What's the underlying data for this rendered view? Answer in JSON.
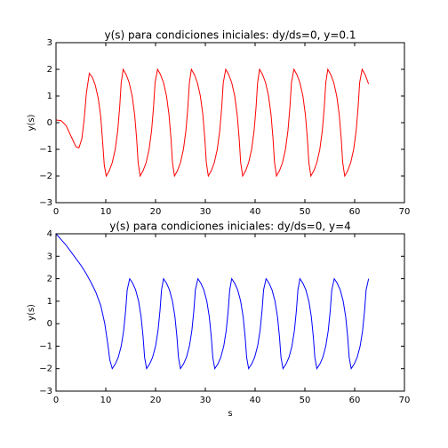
{
  "chart_data": [
    {
      "type": "line",
      "title": "y(s) para condiciones iniciales: dy/ds=0, y=0.1",
      "ylabel": "y(s)",
      "xlim": [
        0,
        70
      ],
      "xticks": [
        0,
        10,
        20,
        30,
        40,
        50,
        60,
        70
      ],
      "ylim": [
        -3,
        3
      ],
      "yticks": [
        {
          "value": -3,
          "label": "−3"
        },
        {
          "value": -2,
          "label": "−2"
        },
        {
          "value": -1,
          "label": "−1"
        },
        0,
        1,
        2,
        3
      ],
      "x": [
        0,
        1,
        2,
        3,
        4,
        4.6,
        5.2,
        5.7,
        6.1,
        6.7,
        7.3,
        7.9,
        8.5,
        9.0,
        9.4,
        9.7,
        10.1,
        10.7,
        11.3,
        11.9,
        12.4,
        12.8,
        13.1,
        13.5,
        14.1,
        14.7,
        15.3,
        15.8,
        16.2,
        16.5,
        16.9,
        17.5,
        18.1,
        18.7,
        19.2,
        19.6,
        19.9,
        20.4,
        21.0,
        21.6,
        22.2,
        22.7,
        23.1,
        23.4,
        23.8,
        24.4,
        25.0,
        25.6,
        26.1,
        26.5,
        26.8,
        27.2,
        27.8,
        28.4,
        29.0,
        29.5,
        29.9,
        30.2,
        30.6,
        31.2,
        31.8,
        32.4,
        32.9,
        33.3,
        33.6,
        34.1,
        34.7,
        35.3,
        35.9,
        36.4,
        36.8,
        37.1,
        37.5,
        38.1,
        38.7,
        39.3,
        39.8,
        40.2,
        40.5,
        40.9,
        41.5,
        42.1,
        42.7,
        43.2,
        43.6,
        43.9,
        44.3,
        44.9,
        45.5,
        46.1,
        46.6,
        47.0,
        47.3,
        47.8,
        48.4,
        49.0,
        49.6,
        50.1,
        50.5,
        50.8,
        51.2,
        51.8,
        52.4,
        53.0,
        53.5,
        53.9,
        54.2,
        54.6,
        55.2,
        55.8,
        56.4,
        56.9,
        57.3,
        57.6,
        58.0,
        58.6,
        59.2,
        59.8,
        60.3,
        60.7,
        61.0,
        61.5,
        62.1,
        62.8
      ],
      "series": [
        {
          "color": "#ff0000",
          "values": [
            0.1,
            0.08,
            -0.1,
            -0.5,
            -0.9,
            -0.95,
            -0.6,
            0.2,
            1.1,
            1.85,
            1.7,
            1.4,
            0.9,
            0.2,
            -0.8,
            -1.6,
            -2.0,
            -1.8,
            -1.5,
            -1.0,
            -0.3,
            0.6,
            1.5,
            2.0,
            1.8,
            1.5,
            1.0,
            0.3,
            -0.6,
            -1.5,
            -2.0,
            -1.8,
            -1.5,
            -1.0,
            -0.3,
            0.6,
            1.5,
            2.0,
            1.8,
            1.5,
            1.0,
            0.3,
            -0.6,
            -1.5,
            -2.0,
            -1.8,
            -1.5,
            -1.0,
            -0.3,
            0.6,
            1.5,
            2.0,
            1.8,
            1.5,
            1.0,
            0.3,
            -0.6,
            -1.5,
            -2.0,
            -1.8,
            -1.5,
            -1.0,
            -0.3,
            0.6,
            1.5,
            2.0,
            1.8,
            1.5,
            1.0,
            0.3,
            -0.6,
            -1.5,
            -2.0,
            -1.8,
            -1.5,
            -1.0,
            -0.3,
            0.6,
            1.5,
            2.0,
            1.8,
            1.5,
            1.0,
            0.3,
            -0.6,
            -1.5,
            -2.0,
            -1.8,
            -1.5,
            -1.0,
            -0.3,
            0.6,
            1.5,
            2.0,
            1.8,
            1.5,
            1.0,
            0.3,
            -0.6,
            -1.5,
            -2.0,
            -1.8,
            -1.5,
            -1.0,
            -0.3,
            0.6,
            1.5,
            2.0,
            1.8,
            1.5,
            1.0,
            0.3,
            -0.6,
            -1.5,
            -2.0,
            -1.8,
            -1.5,
            -1.0,
            -0.3,
            0.6,
            1.5,
            2.0,
            1.8,
            1.45
          ]
        }
      ]
    },
    {
      "type": "line",
      "title": "y(s) para condiciones iniciales: dy/ds=0, y=4",
      "ylabel": "y(s)",
      "xlabel": "s",
      "xlim": [
        0,
        70
      ],
      "xticks": [
        0,
        10,
        20,
        30,
        40,
        50,
        60,
        70
      ],
      "ylim": [
        -3,
        4
      ],
      "yticks": [
        {
          "value": -3,
          "label": "−3"
        },
        {
          "value": -2,
          "label": "−2"
        },
        {
          "value": -1,
          "label": "−1"
        },
        0,
        1,
        2,
        3,
        4
      ],
      "x": [
        0,
        1,
        2,
        3,
        4,
        5,
        6,
        7,
        8,
        9,
        9.8,
        10.4,
        10.8,
        11.3,
        11.9,
        12.5,
        13.1,
        13.6,
        14.0,
        14.3,
        14.8,
        15.4,
        16.0,
        16.6,
        17.1,
        17.5,
        17.8,
        18.2,
        18.8,
        19.4,
        20.0,
        20.5,
        20.9,
        21.2,
        21.6,
        22.2,
        22.8,
        23.4,
        23.9,
        24.3,
        24.6,
        25.0,
        25.6,
        26.2,
        26.8,
        27.3,
        27.7,
        28.0,
        28.5,
        29.1,
        29.7,
        30.3,
        30.8,
        31.2,
        31.5,
        31.9,
        32.5,
        33.1,
        33.7,
        34.2,
        34.6,
        34.9,
        35.3,
        35.9,
        36.5,
        37.1,
        37.6,
        38.0,
        38.3,
        38.7,
        39.3,
        39.9,
        40.5,
        41.0,
        41.4,
        41.7,
        42.2,
        42.8,
        43.4,
        44.0,
        44.5,
        44.9,
        45.2,
        45.6,
        46.2,
        46.8,
        47.4,
        47.9,
        48.3,
        48.6,
        49.0,
        49.6,
        50.2,
        50.8,
        51.3,
        51.7,
        52.0,
        52.4,
        53.0,
        53.6,
        54.2,
        54.7,
        55.1,
        55.4,
        55.9,
        56.5,
        57.1,
        57.7,
        58.2,
        58.6,
        58.9,
        59.3,
        59.9,
        60.5,
        61.1,
        61.6,
        62.0,
        62.3,
        62.8
      ],
      "series": [
        {
          "color": "#0000ff",
          "values": [
            4,
            3.75,
            3.5,
            3.2,
            2.9,
            2.6,
            2.25,
            1.85,
            1.4,
            0.8,
            0.0,
            -0.9,
            -1.6,
            -2.0,
            -1.8,
            -1.5,
            -1.0,
            -0.3,
            0.6,
            1.5,
            2.0,
            1.8,
            1.5,
            1.0,
            0.3,
            -0.6,
            -1.5,
            -2.0,
            -1.8,
            -1.5,
            -1.0,
            -0.3,
            0.6,
            1.5,
            2.0,
            1.8,
            1.5,
            1.0,
            0.3,
            -0.6,
            -1.5,
            -2.0,
            -1.8,
            -1.5,
            -1.0,
            -0.3,
            0.6,
            1.5,
            2.0,
            1.8,
            1.5,
            1.0,
            0.3,
            -0.6,
            -1.5,
            -2.0,
            -1.8,
            -1.5,
            -1.0,
            -0.3,
            0.6,
            1.5,
            2.0,
            1.8,
            1.5,
            1.0,
            0.3,
            -0.6,
            -1.5,
            -2.0,
            -1.8,
            -1.5,
            -1.0,
            -0.3,
            0.6,
            1.5,
            2.0,
            1.8,
            1.5,
            1.0,
            0.3,
            -0.6,
            -1.5,
            -2.0,
            -1.8,
            -1.5,
            -1.0,
            -0.3,
            0.6,
            1.5,
            2.0,
            1.8,
            1.5,
            1.0,
            0.3,
            -0.6,
            -1.5,
            -2.0,
            -1.8,
            -1.5,
            -1.0,
            -0.3,
            0.6,
            1.5,
            2.0,
            1.8,
            1.5,
            1.0,
            0.3,
            -0.6,
            -1.5,
            -2.0,
            -1.8,
            -1.5,
            -1.0,
            -0.3,
            0.6,
            1.5,
            2.0
          ]
        }
      ]
    }
  ]
}
